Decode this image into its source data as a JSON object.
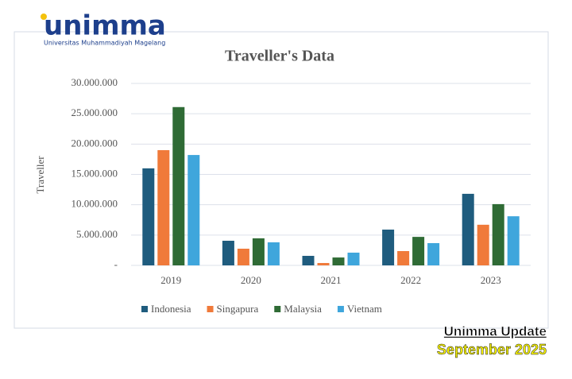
{
  "logo": {
    "name": "unimma",
    "subtitle": "Universitas Muhammadiyah Magelang"
  },
  "caption": {
    "line1": "Unimma Update",
    "line2": "September 2025"
  },
  "chart_data": {
    "type": "bar",
    "title": "Traveller's Data",
    "y_label": "Traveller",
    "categories": [
      "2019",
      "2020",
      "2021",
      "2022",
      "2023"
    ],
    "series": [
      {
        "name": "Indonesia",
        "color": "#1f5c7e",
        "values": [
          16000000,
          4060000,
          1570000,
          5900000,
          11800000
        ]
      },
      {
        "name": "Singapura",
        "color": "#f07a3a",
        "values": [
          19000000,
          2750000,
          390000,
          2360000,
          6700000
        ]
      },
      {
        "name": "Malaysia",
        "color": "#2f6b35",
        "values": [
          26100000,
          4460000,
          1300000,
          4700000,
          10100000
        ]
      },
      {
        "name": "Vietnam",
        "color": "#3fa6dc",
        "values": [
          18200000,
          3800000,
          2100000,
          3670000,
          8100000
        ]
      }
    ],
    "ylim": [
      0,
      30000000
    ],
    "yticks": [
      {
        "value": 0,
        "label": "-"
      },
      {
        "value": 5000000,
        "label": "5.000.000"
      },
      {
        "value": 10000000,
        "label": "10.000.000"
      },
      {
        "value": 15000000,
        "label": "15.000.000"
      },
      {
        "value": 20000000,
        "label": "20.000.000"
      },
      {
        "value": 25000000,
        "label": "25.000.000"
      },
      {
        "value": 30000000,
        "label": "30.000.000"
      }
    ],
    "grid": true,
    "legend": "bottom"
  }
}
